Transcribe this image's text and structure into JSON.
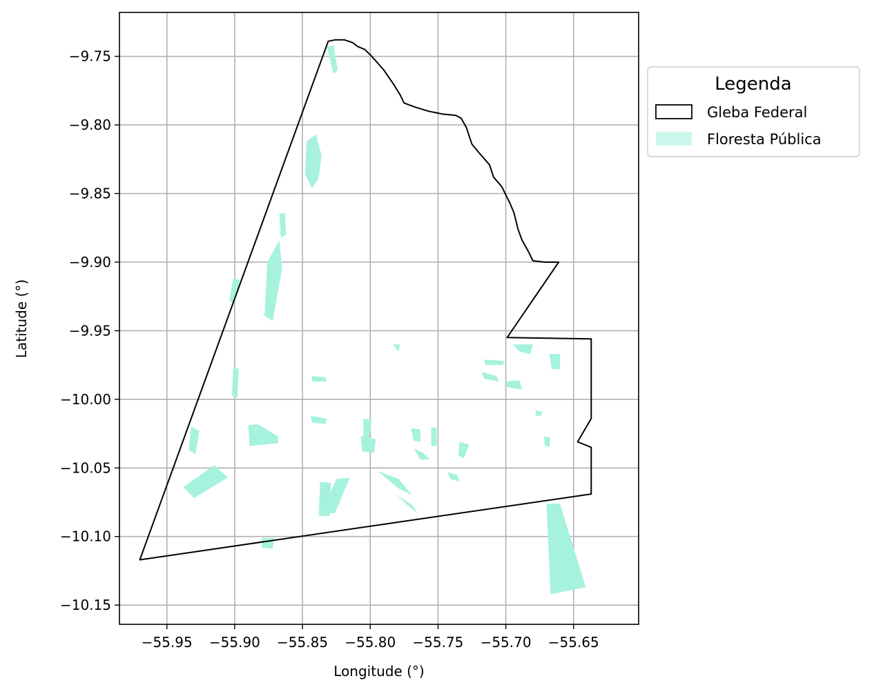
{
  "x_axis": {
    "label": "Longitude (°)",
    "range": [
      -55.985,
      -55.602
    ],
    "ticks": [
      -55.95,
      -55.9,
      -55.85,
      -55.8,
      -55.75,
      -55.7,
      -55.65
    ],
    "tick_labels": [
      "−55.95",
      "−55.90",
      "−55.85",
      "−55.80",
      "−55.75",
      "−55.70",
      "−55.65"
    ]
  },
  "y_axis": {
    "label": "Latitude (°)",
    "range": [
      -10.164,
      -9.718
    ],
    "ticks": [
      -9.75,
      -9.8,
      -9.85,
      -9.9,
      -9.95,
      -10.0,
      -10.05,
      -10.1,
      -10.15
    ],
    "tick_labels": [
      "−9.75",
      "−9.80",
      "−9.85",
      "−9.90",
      "−9.95",
      "−10.00",
      "−10.05",
      "−10.10",
      "−10.15"
    ]
  },
  "grid": true,
  "legend": {
    "title": "Legenda",
    "placement": "outside-right",
    "entries": [
      {
        "label": "Gleba Federal",
        "style": "outline",
        "color": "#000000"
      },
      {
        "label": "Floresta Pública",
        "style": "fill",
        "color": "#a6f2df"
      }
    ]
  },
  "colors": {
    "gleba_stroke": "#000000",
    "floresta_fill": "#a6f2df",
    "grid": "#b0b0b0"
  },
  "gleba_federal": [
    [
      -55.831,
      -9.739
    ],
    [
      -55.826,
      -9.738
    ],
    [
      -55.819,
      -9.738
    ],
    [
      -55.813,
      -9.74
    ],
    [
      -55.809,
      -9.743
    ],
    [
      -55.804,
      -9.745
    ],
    [
      -55.798,
      -9.751
    ],
    [
      -55.79,
      -9.76
    ],
    [
      -55.783,
      -9.77
    ],
    [
      -55.778,
      -9.778
    ],
    [
      -55.775,
      -9.784
    ],
    [
      -55.767,
      -9.787
    ],
    [
      -55.757,
      -9.79
    ],
    [
      -55.747,
      -9.792
    ],
    [
      -55.737,
      -9.793
    ],
    [
      -55.733,
      -9.795
    ],
    [
      -55.729,
      -9.802
    ],
    [
      -55.725,
      -9.814
    ],
    [
      -55.72,
      -9.82
    ],
    [
      -55.712,
      -9.829
    ],
    [
      -55.709,
      -9.838
    ],
    [
      -55.703,
      -9.845
    ],
    [
      -55.697,
      -9.857
    ],
    [
      -55.694,
      -9.864
    ],
    [
      -55.691,
      -9.876
    ],
    [
      -55.688,
      -9.884
    ],
    [
      -55.684,
      -9.891
    ],
    [
      -55.68,
      -9.899
    ],
    [
      -55.671,
      -9.9
    ],
    [
      -55.661,
      -9.9
    ],
    [
      -55.699,
      -9.955
    ],
    [
      -55.637,
      -9.956
    ],
    [
      -55.637,
      -10.014
    ],
    [
      -55.647,
      -10.031
    ],
    [
      -55.637,
      -10.035
    ],
    [
      -55.637,
      -10.069
    ],
    [
      -55.97,
      -10.117
    ],
    [
      -55.831,
      -9.739
    ]
  ],
  "floresta_publica": [
    [
      [
        -55.67,
        -10.076
      ],
      [
        -55.66,
        -10.076
      ],
      [
        -55.641,
        -10.137
      ],
      [
        -55.667,
        -10.142
      ]
    ],
    [
      [
        -55.832,
        -9.743
      ],
      [
        -55.827,
        -9.742
      ],
      [
        -55.824,
        -9.76
      ],
      [
        -55.827,
        -9.763
      ]
    ],
    [
      [
        -55.847,
        -9.812
      ],
      [
        -55.84,
        -9.807
      ],
      [
        -55.836,
        -9.822
      ],
      [
        -55.838,
        -9.839
      ],
      [
        -55.843,
        -9.846
      ],
      [
        -55.848,
        -9.836
      ]
    ],
    [
      [
        -55.867,
        -9.865
      ],
      [
        -55.863,
        -9.864
      ],
      [
        -55.862,
        -9.88
      ],
      [
        -55.866,
        -9.882
      ]
    ],
    [
      [
        -55.876,
        -9.9
      ],
      [
        -55.867,
        -9.884
      ],
      [
        -55.865,
        -9.905
      ],
      [
        -55.872,
        -9.943
      ],
      [
        -55.878,
        -9.939
      ]
    ],
    [
      [
        -55.89,
        -10.019
      ],
      [
        -55.883,
        -10.018
      ],
      [
        -55.868,
        -10.027
      ],
      [
        -55.868,
        -10.032
      ],
      [
        -55.889,
        -10.034
      ]
    ],
    [
      [
        -55.825,
        -10.058
      ],
      [
        -55.815,
        -10.057
      ],
      [
        -55.826,
        -10.083
      ],
      [
        -55.836,
        -10.083
      ]
    ],
    [
      [
        -55.795,
        -10.052
      ],
      [
        -55.779,
        -10.058
      ],
      [
        -55.769,
        -10.07
      ],
      [
        -55.779,
        -10.065
      ]
    ],
    [
      [
        -55.78,
        -10.07
      ],
      [
        -55.769,
        -10.077
      ],
      [
        -55.765,
        -10.083
      ],
      [
        -55.774,
        -10.076
      ]
    ],
    [
      [
        -55.743,
        -10.053
      ],
      [
        -55.736,
        -10.055
      ],
      [
        -55.734,
        -10.06
      ],
      [
        -55.741,
        -10.058
      ]
    ],
    [
      [
        -55.88,
        -10.101
      ],
      [
        -55.871,
        -10.101
      ],
      [
        -55.872,
        -10.109
      ],
      [
        -55.88,
        -10.108
      ]
    ],
    [
      [
        -55.901,
        -9.912
      ],
      [
        -55.896,
        -9.913
      ],
      [
        -55.901,
        -9.93
      ],
      [
        -55.904,
        -9.928
      ]
    ],
    [
      [
        -55.905,
        -10.057
      ],
      [
        -55.915,
        -10.048
      ],
      [
        -55.938,
        -10.064
      ],
      [
        -55.93,
        -10.072
      ]
    ],
    [
      [
        -55.932,
        -10.02
      ],
      [
        -55.926,
        -10.023
      ],
      [
        -55.929,
        -10.04
      ],
      [
        -55.934,
        -10.037
      ]
    ],
    [
      [
        -55.901,
        -9.976
      ],
      [
        -55.897,
        -9.978
      ],
      [
        -55.898,
        -9.999
      ],
      [
        -55.902,
        -9.997
      ]
    ],
    [
      [
        -55.783,
        -9.96
      ],
      [
        -55.778,
        -9.96
      ],
      [
        -55.779,
        -9.965
      ],
      [
        -55.781,
        -9.963
      ]
    ],
    [
      [
        -55.695,
        -9.96
      ],
      [
        -55.68,
        -9.96
      ],
      [
        -55.682,
        -9.967
      ],
      [
        -55.69,
        -9.965
      ]
    ],
    [
      [
        -55.668,
        -9.967
      ],
      [
        -55.66,
        -9.967
      ],
      [
        -55.66,
        -9.978
      ],
      [
        -55.666,
        -9.978
      ]
    ],
    [
      [
        -55.716,
        -9.971
      ],
      [
        -55.701,
        -9.972
      ],
      [
        -55.702,
        -9.975
      ],
      [
        -55.715,
        -9.975
      ]
    ],
    [
      [
        -55.718,
        -9.98
      ],
      [
        -55.707,
        -9.983
      ],
      [
        -55.705,
        -9.987
      ],
      [
        -55.716,
        -9.985
      ]
    ],
    [
      [
        -55.7,
        -9.987
      ],
      [
        -55.69,
        -9.986
      ],
      [
        -55.688,
        -9.993
      ],
      [
        -55.7,
        -9.991
      ]
    ],
    [
      [
        -55.837,
        -10.06
      ],
      [
        -55.829,
        -10.061
      ],
      [
        -55.83,
        -10.085
      ],
      [
        -55.838,
        -10.085
      ]
    ],
    [
      [
        -55.77,
        -10.021
      ],
      [
        -55.763,
        -10.022
      ],
      [
        -55.763,
        -10.031
      ],
      [
        -55.768,
        -10.03
      ]
    ],
    [
      [
        -55.755,
        -10.02
      ],
      [
        -55.751,
        -10.021
      ],
      [
        -55.751,
        -10.034
      ],
      [
        -55.755,
        -10.034
      ]
    ],
    [
      [
        -55.805,
        -10.014
      ],
      [
        -55.799,
        -10.015
      ],
      [
        -55.801,
        -10.031
      ],
      [
        -55.805,
        -10.031
      ]
    ],
    [
      [
        -55.807,
        -10.027
      ],
      [
        -55.796,
        -10.029
      ],
      [
        -55.797,
        -10.039
      ],
      [
        -55.806,
        -10.038
      ]
    ],
    [
      [
        -55.734,
        -10.031
      ],
      [
        -55.727,
        -10.033
      ],
      [
        -55.731,
        -10.043
      ],
      [
        -55.735,
        -10.041
      ]
    ],
    [
      [
        -55.672,
        -10.027
      ],
      [
        -55.667,
        -10.028
      ],
      [
        -55.668,
        -10.035
      ],
      [
        -55.671,
        -10.034
      ]
    ],
    [
      [
        -55.678,
        -10.008
      ],
      [
        -55.673,
        -10.009
      ],
      [
        -55.674,
        -10.012
      ],
      [
        -55.678,
        -10.012
      ]
    ],
    [
      [
        -55.768,
        -10.036
      ],
      [
        -55.761,
        -10.039
      ],
      [
        -55.756,
        -10.044
      ],
      [
        -55.763,
        -10.044
      ]
    ],
    [
      [
        -55.844,
        -10.012
      ],
      [
        -55.832,
        -10.014
      ],
      [
        -55.833,
        -10.018
      ],
      [
        -55.843,
        -10.017
      ]
    ],
    [
      [
        -55.843,
        -9.983
      ],
      [
        -55.833,
        -9.984
      ],
      [
        -55.832,
        -9.987
      ],
      [
        -55.843,
        -9.987
      ]
    ]
  ]
}
